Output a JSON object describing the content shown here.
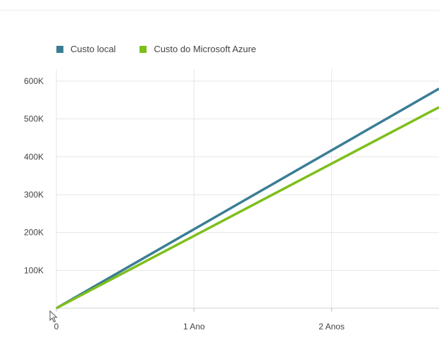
{
  "chart_data": {
    "type": "line",
    "title": "",
    "xlabel": "",
    "ylabel": "",
    "x_ticks": [
      {
        "value": 0,
        "label": "0"
      },
      {
        "value": 1,
        "label": "1 Ano"
      },
      {
        "value": 2,
        "label": "2 Anos"
      }
    ],
    "y_ticks": [
      {
        "value": 100000,
        "label": "100K"
      },
      {
        "value": 200000,
        "label": "200K"
      },
      {
        "value": 300000,
        "label": "300K"
      },
      {
        "value": 400000,
        "label": "400K"
      },
      {
        "value": 500000,
        "label": "500K"
      },
      {
        "value": 600000,
        "label": "600K"
      }
    ],
    "xlim": [
      0,
      2.78
    ],
    "ylim": [
      0,
      600000
    ],
    "grid": true,
    "legend_position": "top-left",
    "series": [
      {
        "name": "Custo local",
        "color": "#3a7d94",
        "x": [
          0,
          2.78
        ],
        "y": [
          0,
          580000
        ]
      },
      {
        "name": "Custo do Microsoft Azure",
        "color": "#7dbf1a",
        "x": [
          0,
          2.78
        ],
        "y": [
          0,
          531000
        ]
      }
    ]
  },
  "cursor": {
    "icon": "mouse-pointer-icon"
  }
}
